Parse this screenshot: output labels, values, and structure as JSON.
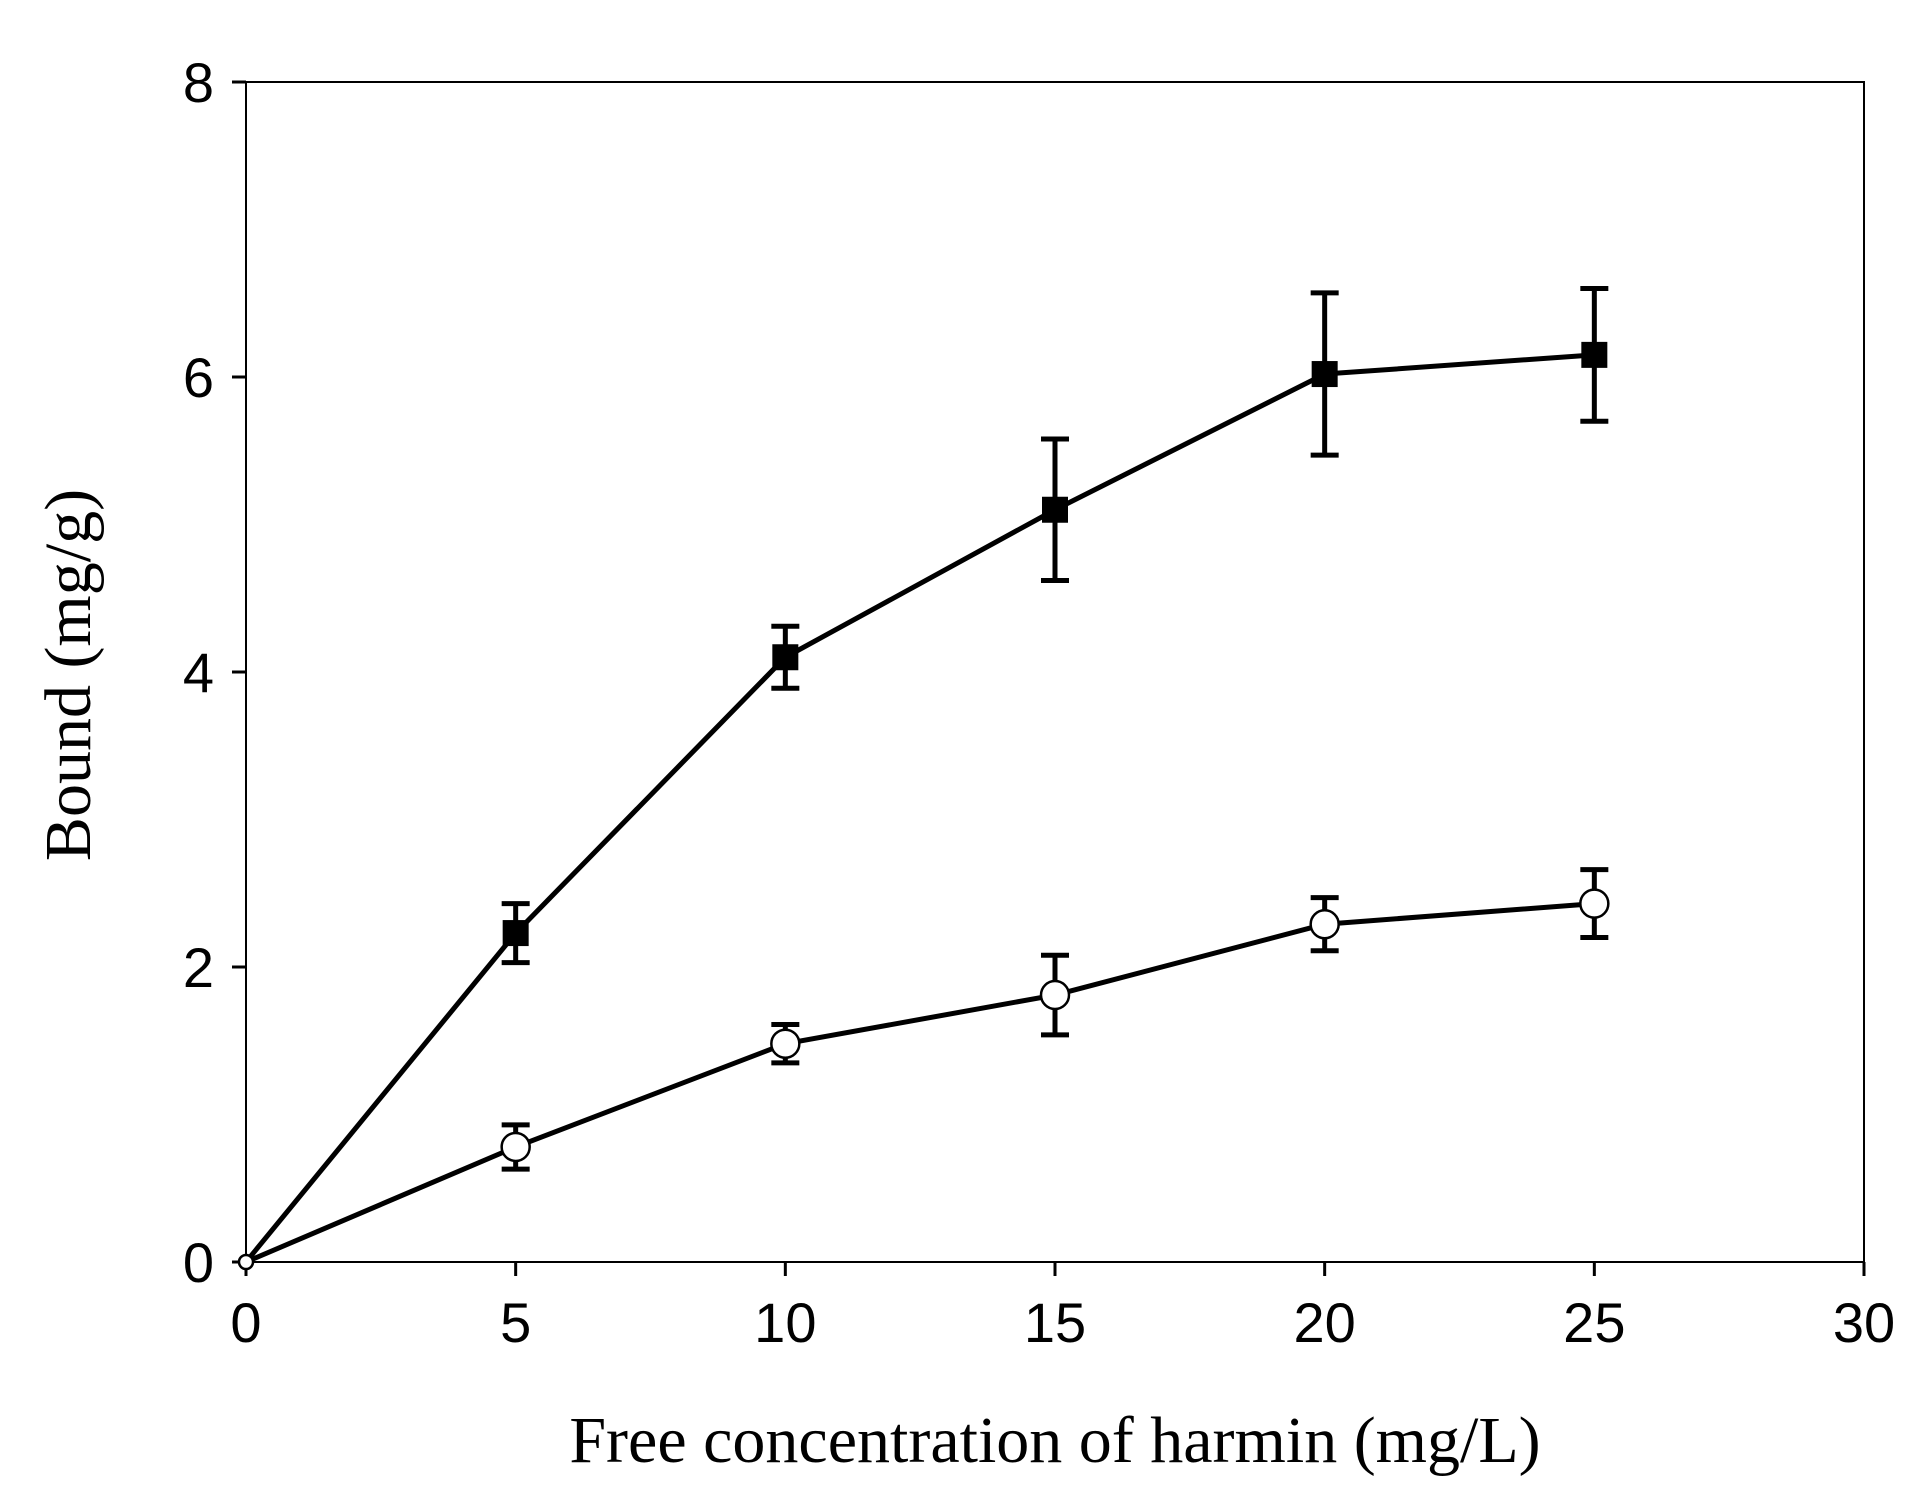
{
  "chart_data": {
    "type": "line",
    "title": "",
    "xlabel": "Free concentration of harmin (mg/L)",
    "ylabel": "Bound (mg/g)",
    "xlim": [
      0,
      30
    ],
    "ylim": [
      0,
      8
    ],
    "xticks": [
      0,
      5,
      10,
      15,
      20,
      25,
      30
    ],
    "yticks": [
      0,
      2,
      4,
      6,
      8
    ],
    "grid": false,
    "legend": "none",
    "series": [
      {
        "name": "filled squares",
        "marker": "square-filled",
        "x": [
          0,
          5,
          10,
          15,
          20,
          25
        ],
        "y": [
          0,
          2.23,
          4.1,
          5.1,
          6.02,
          6.15
        ],
        "yerr": [
          0,
          0.2,
          0.21,
          0.48,
          0.55,
          0.45
        ]
      },
      {
        "name": "open circles",
        "marker": "circle-open",
        "x": [
          0,
          5,
          10,
          15,
          20,
          25
        ],
        "y": [
          0,
          0.78,
          1.48,
          1.81,
          2.29,
          2.43
        ],
        "yerr": [
          0,
          0.15,
          0.13,
          0.27,
          0.18,
          0.23
        ]
      }
    ]
  }
}
